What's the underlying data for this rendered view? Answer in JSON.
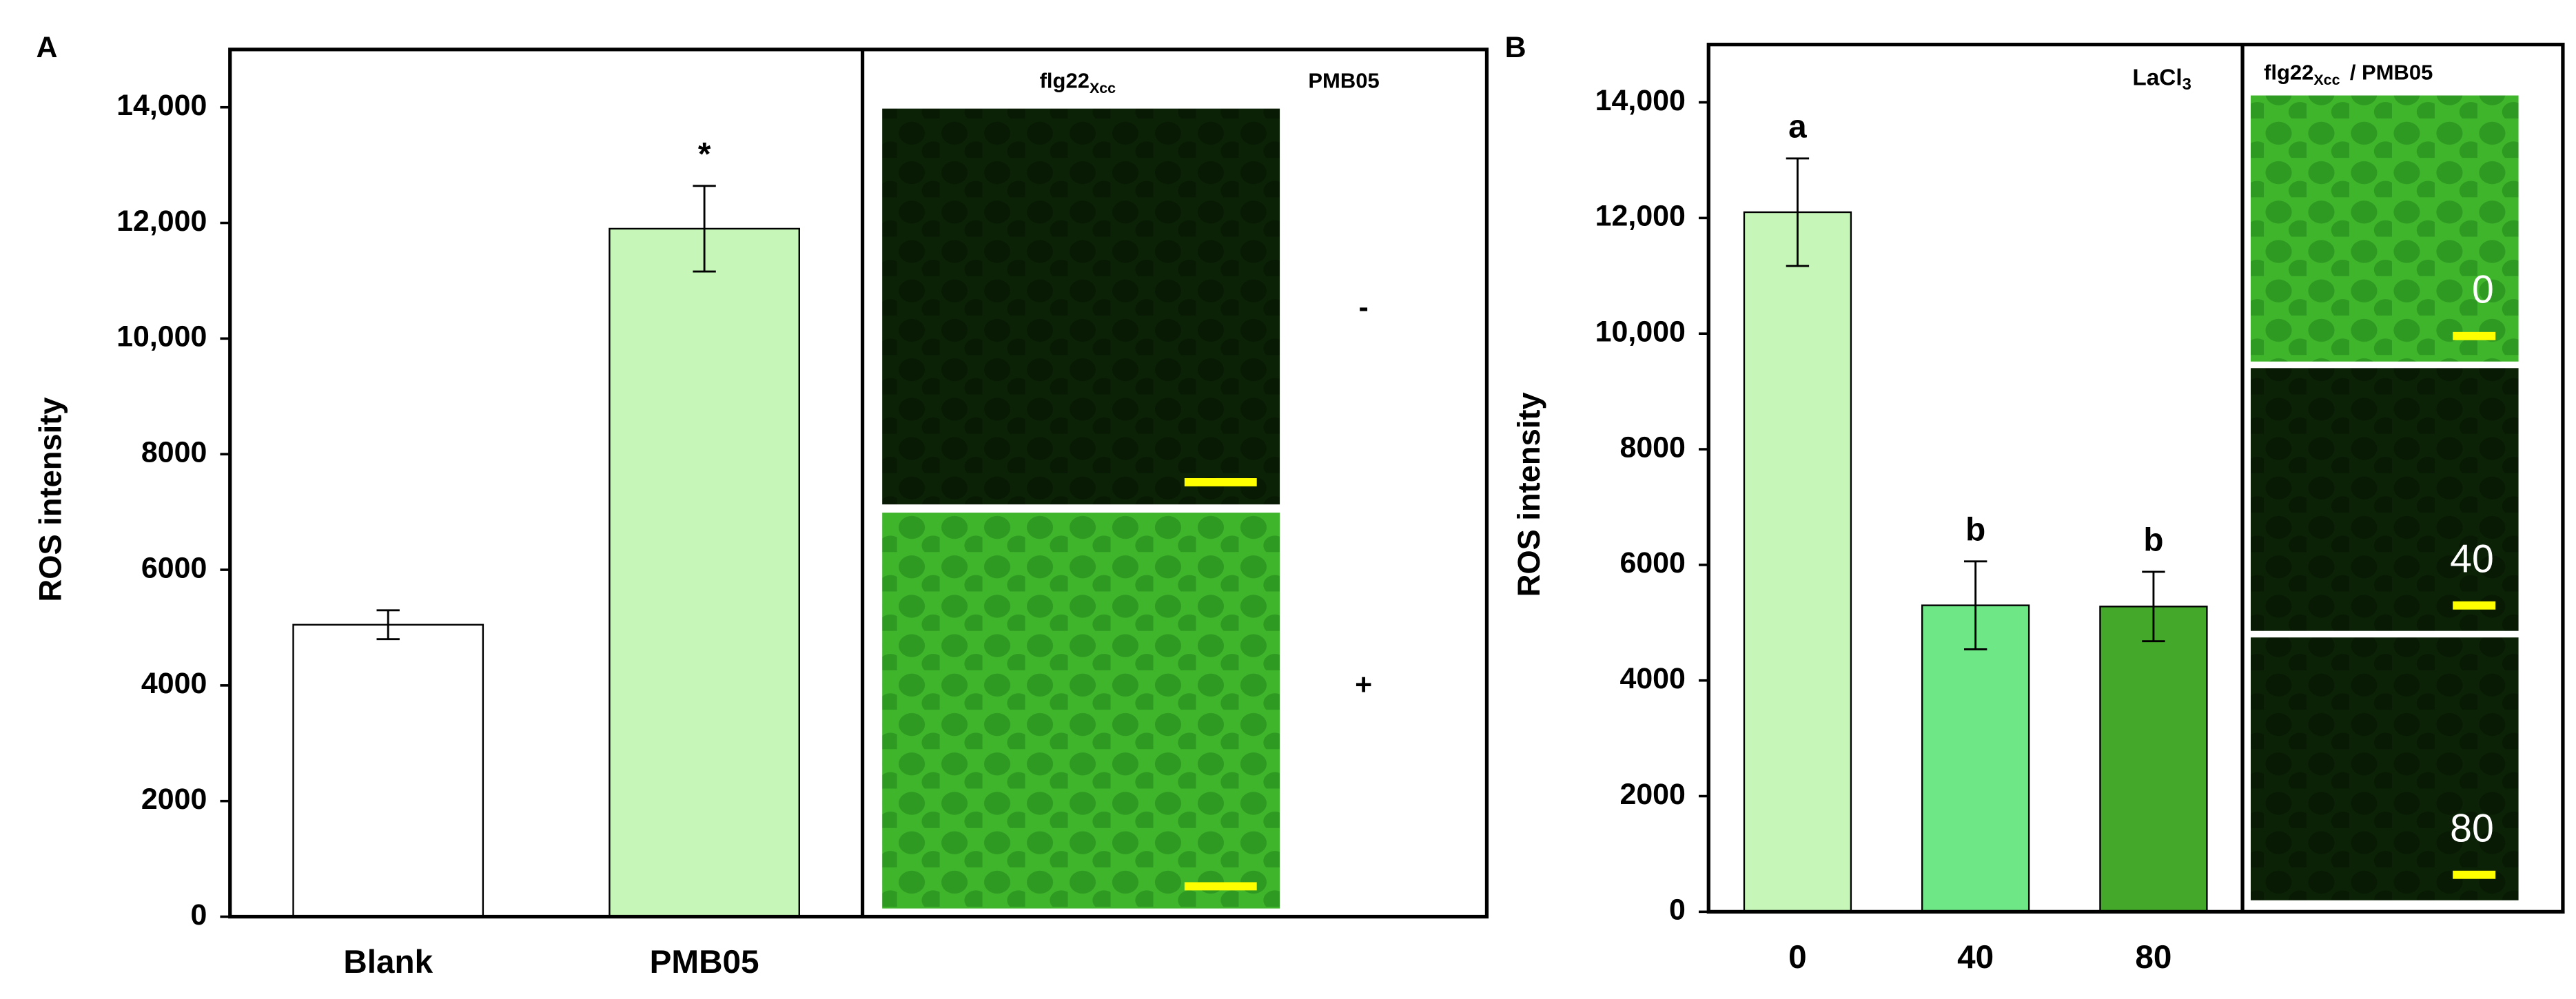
{
  "chart_data": [
    {
      "type": "bar",
      "panel_label": "A",
      "y_label": "ROS intensity",
      "categories": [
        "Blank",
        "PMB05"
      ],
      "values": [
        5050,
        11900
      ],
      "errors": [
        250,
        740
      ],
      "colors": [
        "#ffffff",
        "#c6f7b8"
      ],
      "significance_labels": [
        null,
        "*"
      ],
      "ylim": [
        0,
        15000
      ],
      "yticks": [
        0,
        2000,
        4000,
        6000,
        8000,
        {
          "value": 10000,
          "label": "10,000"
        },
        {
          "value": 12000,
          "label": "12,000"
        },
        {
          "value": 14000,
          "label": "14,000"
        }
      ],
      "image_panel": {
        "header": "flg22",
        "header_sub": "Xcc",
        "column_label": "PMB05",
        "row_labels": [
          "-",
          "+"
        ]
      }
    },
    {
      "type": "bar",
      "panel_label": "B",
      "y_label": "ROS intensity",
      "categories": [
        "0",
        "40",
        "80"
      ],
      "values": [
        12100,
        5300,
        5280
      ],
      "errors": [
        930,
        760,
        600
      ],
      "colors": [
        "#c6f7b8",
        "#6ee886",
        "#44a82a"
      ],
      "significance_labels": [
        "a",
        "b",
        "b"
      ],
      "ylim": [
        0,
        15000
      ],
      "yticks": [
        0,
        2000,
        4000,
        6000,
        8000,
        {
          "value": 10000,
          "label": "10,000"
        },
        {
          "value": 12000,
          "label": "12,000"
        },
        {
          "value": 14000,
          "label": "14,000"
        }
      ],
      "image_panel": {
        "title": "LaCl",
        "title_sub": "3",
        "header": "flg22",
        "header_sub": "Xcc",
        "header_suffix": "/ PMB05",
        "image_labels": [
          "0",
          "40",
          "80"
        ]
      }
    }
  ]
}
